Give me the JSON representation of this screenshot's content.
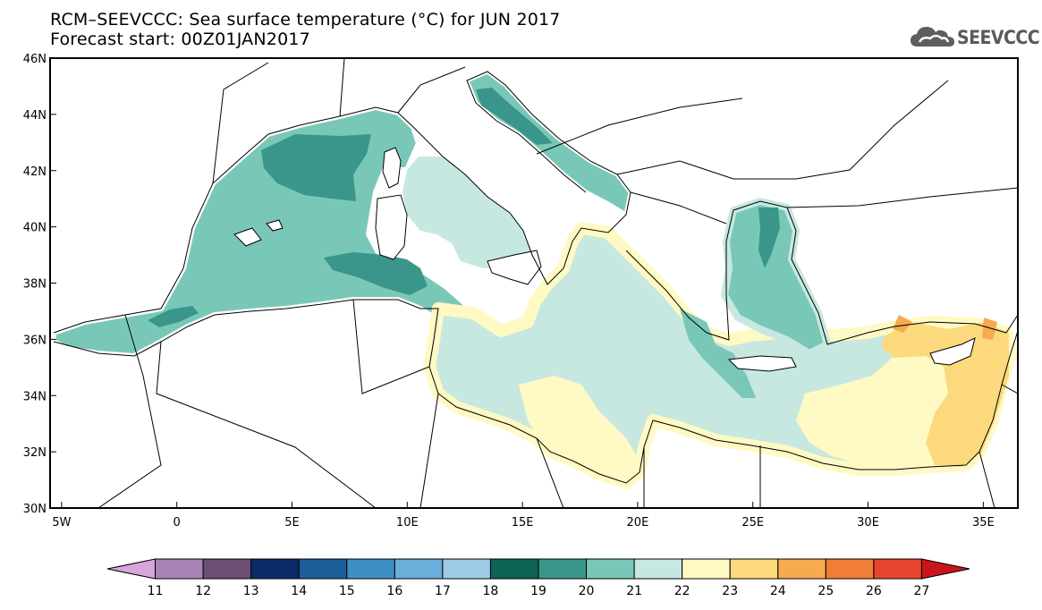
{
  "header": {
    "title_line1": "RCM–SEEVCCC: Sea surface temperature (°C) for JUN 2017",
    "title_line2": "Forecast start: 00Z01JAN2017"
  },
  "logo": {
    "text": "SEEVCCC",
    "icon": "cloud-icon"
  },
  "map": {
    "lon_range": [
      -5.5,
      36.5
    ],
    "lat_range": [
      30,
      46
    ],
    "lon_ticks": [
      {
        "value": -5,
        "label": "5W"
      },
      {
        "value": 0,
        "label": "0"
      },
      {
        "value": 5,
        "label": "5E"
      },
      {
        "value": 10,
        "label": "10E"
      },
      {
        "value": 15,
        "label": "15E"
      },
      {
        "value": 20,
        "label": "20E"
      },
      {
        "value": 25,
        "label": "25E"
      },
      {
        "value": 30,
        "label": "30E"
      },
      {
        "value": 35,
        "label": "35E"
      }
    ],
    "lat_ticks": [
      {
        "value": 30,
        "label": "30N"
      },
      {
        "value": 32,
        "label": "32N"
      },
      {
        "value": 34,
        "label": "34N"
      },
      {
        "value": 36,
        "label": "36N"
      },
      {
        "value": 38,
        "label": "38N"
      },
      {
        "value": 40,
        "label": "40N"
      },
      {
        "value": 42,
        "label": "42N"
      },
      {
        "value": 44,
        "label": "44N"
      },
      {
        "value": 46,
        "label": "46N"
      }
    ]
  },
  "colorbar": {
    "labels": [
      "11",
      "12",
      "13",
      "14",
      "15",
      "16",
      "17",
      "18",
      "19",
      "20",
      "21",
      "22",
      "23",
      "24",
      "25",
      "26",
      "27"
    ],
    "colors": [
      "#d6a6dd",
      "#a983b8",
      "#6b4e73",
      "#0b2b66",
      "#1c5e99",
      "#3e8ec4",
      "#6aaedb",
      "#9dcbe6",
      "#0b6455",
      "#3a968a",
      "#79c8b7",
      "#c6e8e0",
      "#fff9c4",
      "#fcd97c",
      "#f8aa4f",
      "#f27d36",
      "#e8442d",
      "#c8151b"
    ]
  }
}
